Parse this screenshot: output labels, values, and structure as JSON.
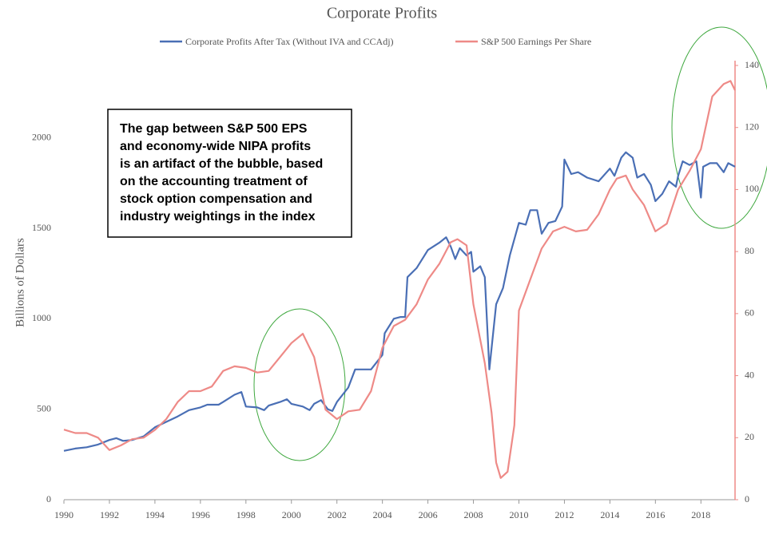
{
  "chart_data": {
    "type": "line",
    "title": "Corporate Profits",
    "y_label": "Billions of Dollars",
    "xlim": [
      1990,
      2019.5
    ],
    "xticks": [
      1990,
      1992,
      1994,
      1996,
      1998,
      2000,
      2002,
      2004,
      2006,
      2008,
      2010,
      2012,
      2014,
      2016,
      2018
    ],
    "ylim": [
      0,
      2400
    ],
    "yticks": [
      0,
      500,
      1000,
      1500,
      2000
    ],
    "y2lim": [
      0,
      140
    ],
    "y2ticks": [
      0,
      20,
      40,
      60,
      80,
      100,
      120,
      140
    ],
    "series": [
      {
        "name": "Corporate Profits After Tax (Without IVA and CCAdj)",
        "color": "#4a6fb5",
        "x": [
          1990,
          1990.5,
          1991,
          1991.5,
          1992,
          1992.3,
          1992.6,
          1993,
          1993.5,
          1994,
          1994.5,
          1995,
          1995.5,
          1996,
          1996.3,
          1996.8,
          1997,
          1997.5,
          1997.8,
          1998,
          1998.5,
          1998.8,
          1999,
          1999.5,
          1999.8,
          2000,
          2000.5,
          2000.8,
          2001,
          2001.3,
          2001.6,
          2001.8,
          2002,
          2002.5,
          2002.8,
          2003,
          2003.5,
          2004,
          2004.1,
          2004.5,
          2004.8,
          2005,
          2005.1,
          2005.5,
          2006,
          2006.5,
          2006.8,
          2007,
          2007.2,
          2007.4,
          2007.7,
          2007.9,
          2008,
          2008.3,
          2008.5,
          2008.7,
          2009,
          2009.3,
          2009.6,
          2010,
          2010.3,
          2010.5,
          2010.8,
          2011,
          2011.3,
          2011.6,
          2011.9,
          2012,
          2012.3,
          2012.6,
          2013,
          2013.5,
          2014,
          2014.2,
          2014.5,
          2014.7,
          2015,
          2015.2,
          2015.5,
          2015.8,
          2016,
          2016.3,
          2016.6,
          2016.9,
          2017,
          2017.2,
          2017.5,
          2017.8,
          2018,
          2018.1,
          2018.4,
          2018.7,
          2019,
          2019.2,
          2019.5
        ],
        "values": [
          270,
          283,
          290,
          305,
          330,
          340,
          325,
          330,
          350,
          400,
          430,
          460,
          495,
          510,
          525,
          525,
          540,
          580,
          595,
          515,
          510,
          495,
          520,
          540,
          555,
          530,
          515,
          495,
          530,
          550,
          500,
          490,
          540,
          620,
          720,
          720,
          720,
          800,
          920,
          1000,
          1010,
          1010,
          1230,
          1280,
          1380,
          1420,
          1450,
          1400,
          1330,
          1390,
          1350,
          1370,
          1260,
          1290,
          1230,
          720,
          1080,
          1170,
          1350,
          1530,
          1520,
          1600,
          1600,
          1470,
          1530,
          1540,
          1620,
          1880,
          1800,
          1810,
          1780,
          1760,
          1830,
          1790,
          1890,
          1920,
          1890,
          1780,
          1800,
          1740,
          1650,
          1690,
          1760,
          1730,
          1790,
          1870,
          1850,
          1870,
          1670,
          1840,
          1860,
          1860,
          1810,
          1860,
          1840
        ]
      },
      {
        "name": "S&P 500 Earnings Per Share",
        "color": "#ee8a87",
        "axis": "y2",
        "x": [
          1990,
          1990.5,
          1991,
          1991.5,
          1992,
          1992.5,
          1993,
          1993.5,
          1994,
          1994.5,
          1995,
          1995.5,
          1996,
          1996.5,
          1997,
          1997.5,
          1998,
          1998.5,
          1999,
          1999.5,
          2000,
          2000.5,
          2001,
          2001.5,
          2002,
          2002.5,
          2003,
          2003.5,
          2004,
          2004.5,
          2005,
          2005.5,
          2006,
          2006.5,
          2007,
          2007.3,
          2007.7,
          2008,
          2008.5,
          2008.8,
          2009,
          2009.2,
          2009.5,
          2009.8,
          2010,
          2010.5,
          2011,
          2011.5,
          2012,
          2012.5,
          2013,
          2013.5,
          2014,
          2014.3,
          2014.7,
          2015,
          2015.5,
          2016,
          2016.5,
          2017,
          2017.5,
          2018,
          2018.5,
          2019,
          2019.3,
          2019.5
        ],
        "values": [
          22.6,
          21.5,
          21.5,
          20,
          16,
          17.5,
          19.5,
          20,
          22.5,
          26,
          31.5,
          35,
          35,
          36.5,
          41.5,
          43,
          42.5,
          41,
          41.5,
          46,
          50.5,
          53.5,
          46,
          29,
          26,
          28.5,
          29,
          35,
          49,
          56,
          58,
          63,
          71,
          76,
          83,
          84,
          82,
          63,
          44,
          28,
          12,
          7,
          9,
          24,
          61,
          71,
          81,
          86.5,
          88,
          86.5,
          87,
          92,
          100,
          103.5,
          104.5,
          100,
          95,
          86.5,
          89,
          100,
          106,
          113,
          130,
          134,
          135,
          132
        ]
      }
    ],
    "annotation": [
      "The gap between S&P 500 EPS",
      "and economy-wide NIPA profits",
      "is an artifact of the bubble, based",
      "on the accounting treatment of",
      "stock option compensation and",
      "industry weightings in the index"
    ]
  }
}
